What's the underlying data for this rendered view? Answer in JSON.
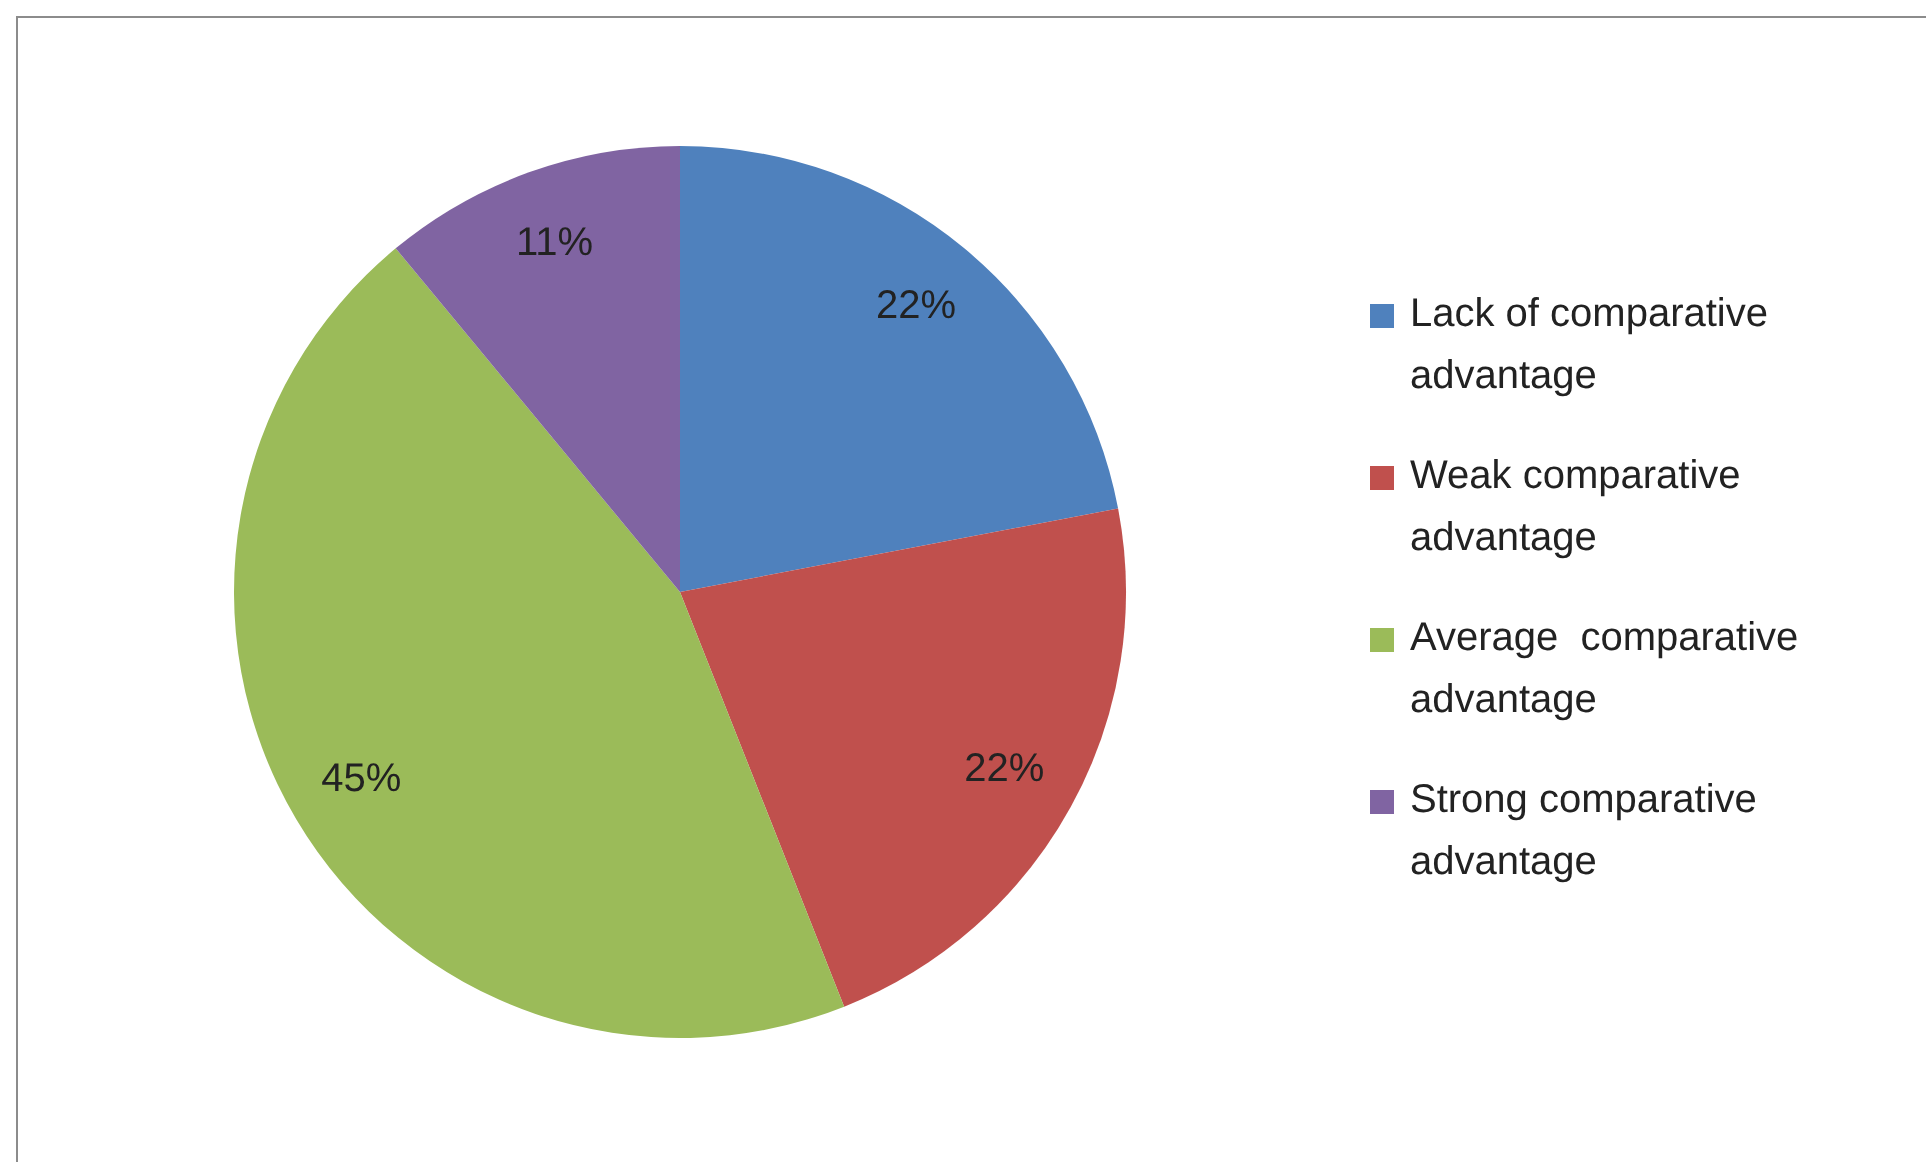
{
  "chart_data": {
    "type": "pie",
    "categories": [
      "Lack of comparative advantage",
      "Weak comparative advantage",
      "Average  comparative advantage",
      "Strong comparative advantage"
    ],
    "values": [
      22,
      22,
      45,
      11
    ],
    "colors": [
      "#4f81bd",
      "#c0504d",
      "#9bbb59",
      "#8064a2"
    ],
    "value_labels": [
      "22%",
      "22%",
      "45%",
      "11%"
    ],
    "legend": "right"
  }
}
